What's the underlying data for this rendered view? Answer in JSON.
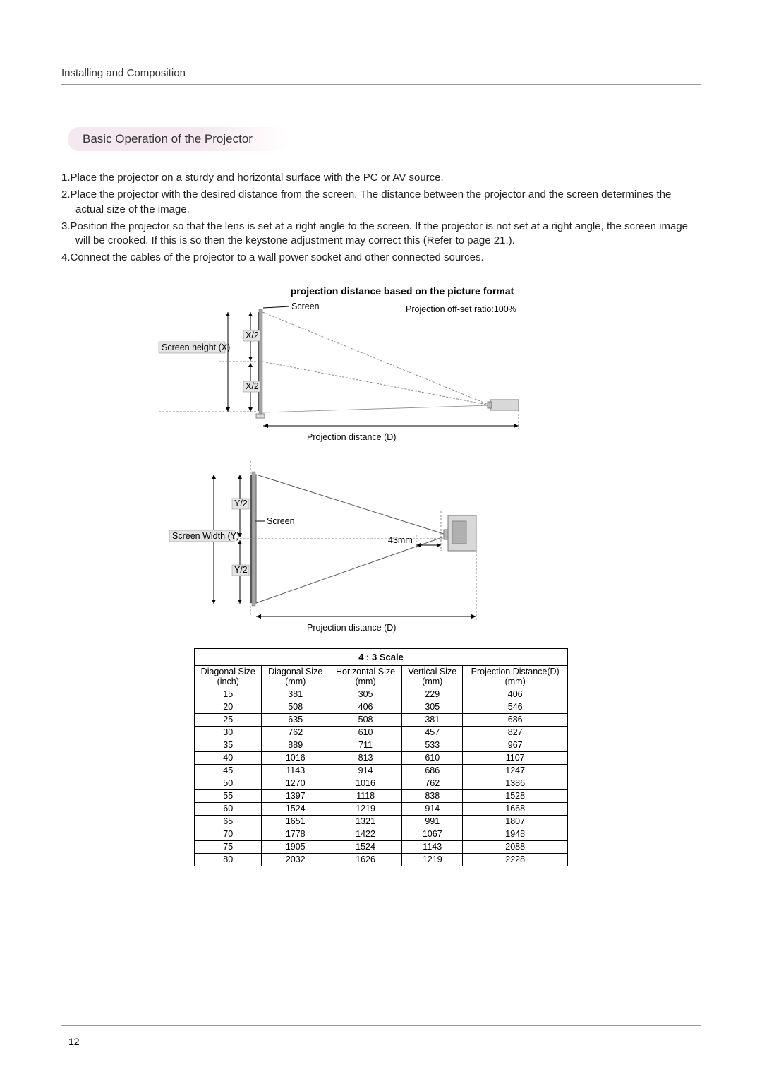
{
  "header": "Installing and Composition",
  "section_title": "Basic Operation of the Projector",
  "list": {
    "item1": "1.Place the projector on a sturdy and horizontal surface with the PC or AV source.",
    "item2": "2.Place the projector with the desired distance from the screen. The distance between the projector and the screen determines the actual size of the image.",
    "item3": "3.Position the projector so that the lens is set at a right angle to the screen. If the projector is not set at a right angle, the screen image will be crooked. If this is so then the keystone adjustment may correct this (Refer to page 21.).",
    "item4": "4.Connect the cables of the projector to a wall power socket and other connected sources."
  },
  "chart_title": "projection distance based on the picture format",
  "diagram1": {
    "screen_label": "Screen",
    "screen_height_label": "Screen height (X)",
    "x_half_label": "X/2",
    "offset_label": "Projection off-set ratio:100%",
    "distance_label": "Projection distance (D)"
  },
  "diagram2": {
    "y_half_label": "Y/2",
    "screen_label": "Screen",
    "screen_width_label": "Screen Width (Y)",
    "mm_label": "43mm",
    "distance_label": "Projection distance (D)"
  },
  "table": {
    "title": "4 : 3 Scale",
    "col1": "Diagonal Size",
    "col1_unit": "(inch)",
    "col2": "Diagonal Size",
    "col2_unit": "(mm)",
    "col3": "Horizontal Size",
    "col3_unit": "(mm)",
    "col4": "Vertical Size",
    "col4_unit": "(mm)",
    "col5": "Projection Distance(D)",
    "col5_unit": "(mm)",
    "rows": [
      [
        "15",
        "381",
        "305",
        "229",
        "406"
      ],
      [
        "20",
        "508",
        "406",
        "305",
        "546"
      ],
      [
        "25",
        "635",
        "508",
        "381",
        "686"
      ],
      [
        "30",
        "762",
        "610",
        "457",
        "827"
      ],
      [
        "35",
        "889",
        "711",
        "533",
        "967"
      ],
      [
        "40",
        "1016",
        "813",
        "610",
        "1107"
      ],
      [
        "45",
        "1143",
        "914",
        "686",
        "1247"
      ],
      [
        "50",
        "1270",
        "1016",
        "762",
        "1386"
      ],
      [
        "55",
        "1397",
        "1118",
        "838",
        "1528"
      ],
      [
        "60",
        "1524",
        "1219",
        "914",
        "1668"
      ],
      [
        "65",
        "1651",
        "1321",
        "991",
        "1807"
      ],
      [
        "70",
        "1778",
        "1422",
        "1067",
        "1948"
      ],
      [
        "75",
        "1905",
        "1524",
        "1143",
        "2088"
      ],
      [
        "80",
        "2032",
        "1626",
        "1219",
        "2228"
      ]
    ]
  },
  "page_number": "12"
}
